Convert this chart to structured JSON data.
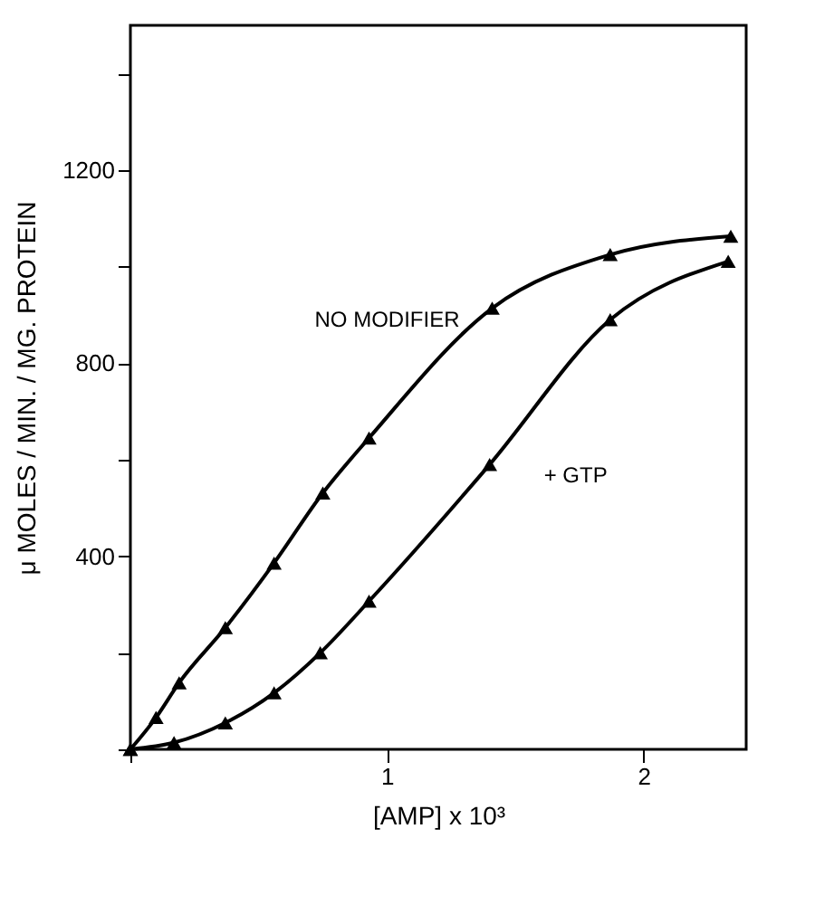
{
  "chart_data": {
    "type": "line",
    "xlabel": "[AMP] x 10³",
    "ylabel": "μ MOLES / MIN. / MG. PROTEIN",
    "x": [
      0,
      0.1,
      0.19,
      0.37,
      0.56,
      0.75,
      0.93,
      1.41,
      1.87,
      2.34
    ],
    "series": [
      {
        "name": "NO MODIFIER",
        "color": "#000000",
        "values": [
          0,
          66,
          138,
          252,
          386,
          531,
          645,
          914,
          1025,
          1063
        ]
      },
      {
        "name": "+ GTP",
        "color": "#000000",
        "x": [
          0,
          0.17,
          0.37,
          0.56,
          0.74,
          0.93,
          1.4,
          1.87,
          2.33
        ],
        "values": [
          0,
          14,
          55,
          117,
          200,
          307,
          590,
          890,
          1011
        ]
      }
    ],
    "xlim": [
      0,
      2.4
    ],
    "ylim": [
      0,
      1500
    ],
    "xticks": [
      {
        "value": 0,
        "label": null
      },
      1,
      2
    ],
    "yticks": [
      {
        "value": 0,
        "label": null
      },
      {
        "value": 200,
        "label": null
      },
      400,
      {
        "value": 600,
        "label": null
      },
      800,
      {
        "value": 1000,
        "label": null
      },
      1200,
      {
        "value": 1400,
        "label": null
      }
    ],
    "grid": false,
    "legend": false,
    "marker": "triangle",
    "line_style": "solid"
  }
}
